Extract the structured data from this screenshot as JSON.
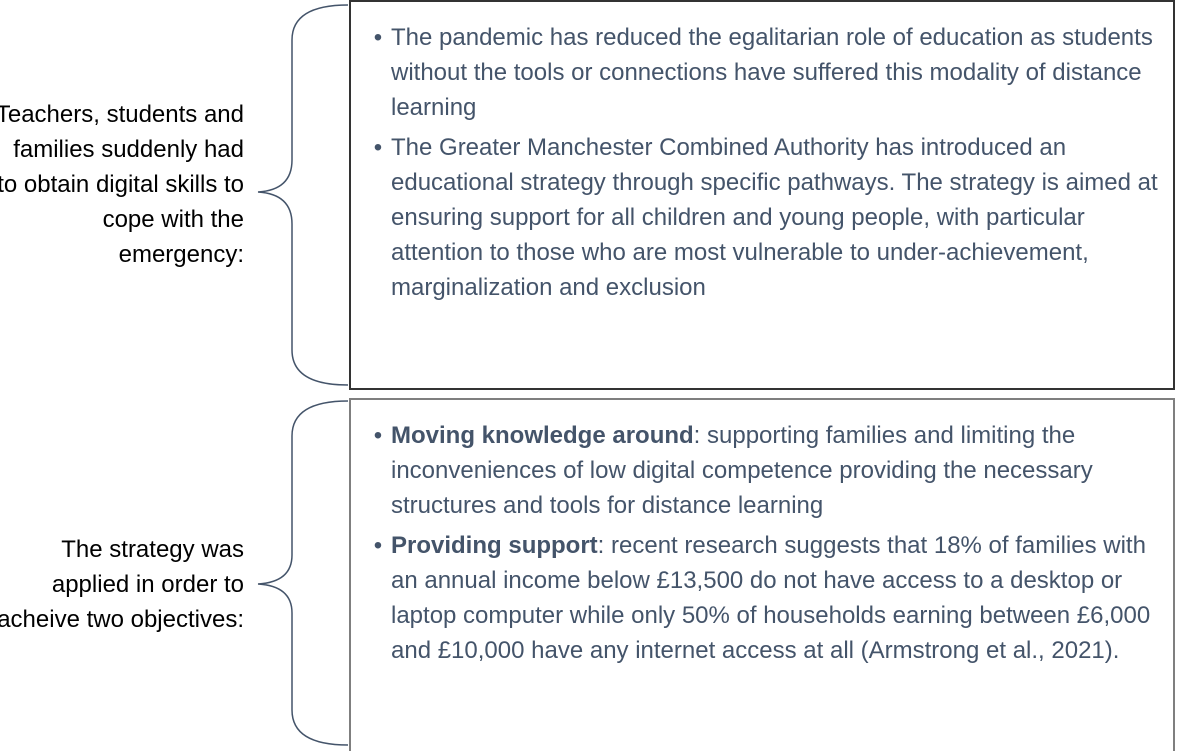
{
  "sections": [
    {
      "label": "Teachers, students and families suddenly had to obtain digital skills to cope with the emergency:",
      "bullets": [
        {
          "text": "The pandemic has reduced the egalitarian role of education as students without the tools or connections have suffered this modality of distance learning"
        },
        {
          "text": "The Greater Manchester Combined Authority has introduced an educational strategy through specific pathways. The strategy is aimed at ensuring support for all children and young people, with particular attention to those who are most vulnerable to under-achievement, marginalization and exclusion"
        }
      ]
    },
    {
      "label": "The strategy was applied in order to acheive two objectives:",
      "bullets": [
        {
          "term": "Moving knowledge around",
          "text": ": supporting families and limiting the inconveniences of low digital competence providing the necessary structures and tools for distance learning"
        },
        {
          "term": "Providing support",
          "text": ": recent research suggests that 18% of families with an annual income below £13,500 do not have access to a desktop or laptop computer while only 50% of households earning between £6,000 and £10,000 have any internet access at all (Armstrong et al., 2021)."
        }
      ]
    }
  ]
}
